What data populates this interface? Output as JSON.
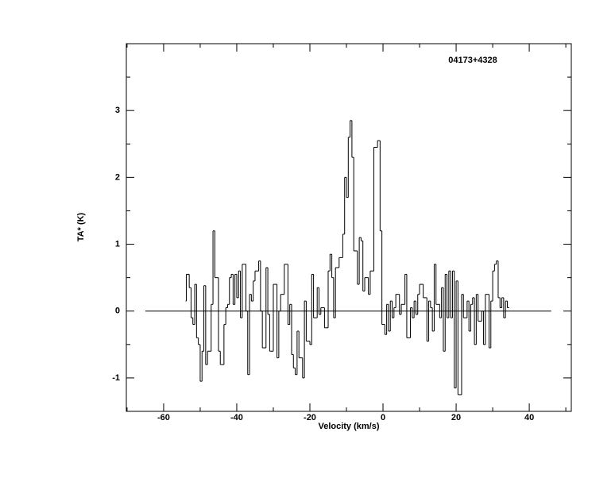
{
  "chart_data": {
    "type": "step",
    "title": "04173+4328",
    "xlabel": "Velocity (km/s)",
    "ylabel": "TA* (K)",
    "xlim": [
      -70.2,
      51.5
    ],
    "ylim": [
      -1.5,
      4.0
    ],
    "xticks": [
      -60,
      -40,
      -20,
      0,
      20,
      40
    ],
    "xticks_minor": [
      -70,
      -50,
      -30,
      -10,
      10,
      30,
      50
    ],
    "yticks": [
      -1,
      0,
      1,
      2,
      3
    ],
    "yticks_minor": [
      -1.5,
      -0.5,
      0.5,
      1.5,
      2.5,
      3.5
    ],
    "color": "#000000",
    "reference_line": {
      "y": 0,
      "x": [
        -65,
        46
      ]
    },
    "x": [
      -54,
      -53.8,
      -53,
      -52.5,
      -52,
      -51.5,
      -51,
      -50.5,
      -50,
      -49.5,
      -49,
      -48.5,
      -48,
      -47,
      -46.5,
      -46,
      -45,
      -44.5,
      -43.5,
      -43,
      -42.5,
      -42,
      -41.5,
      -41,
      -40.5,
      -40,
      -39.5,
      -39,
      -38.5,
      -37.5,
      -37,
      -36.5,
      -36,
      -35.5,
      -35,
      -34,
      -33.5,
      -33,
      -32,
      -31.5,
      -31,
      -30,
      -29,
      -28.5,
      -28,
      -27,
      -26,
      -25.5,
      -25,
      -24.5,
      -24,
      -23.5,
      -23,
      -22,
      -21.5,
      -21,
      -20,
      -19.5,
      -19,
      -18,
      -17.5,
      -17,
      -16,
      -15,
      -14.5,
      -14,
      -13.5,
      -13,
      -12,
      -11,
      -10.5,
      -10,
      -9.5,
      -9,
      -8.5,
      -8,
      -7,
      -6.5,
      -6,
      -5.5,
      -5,
      -4,
      -3.5,
      -2.5,
      -1.5,
      -0.8,
      -0.3,
      0.5,
      1,
      1.5,
      2,
      2.5,
      3,
      3.5,
      4.5,
      5,
      6,
      6.5,
      7.5,
      8,
      8.5,
      9,
      9.5,
      10,
      11,
      12,
      12.5,
      13,
      13.5,
      14,
      14.5,
      15.5,
      16,
      16.5,
      17,
      17.5,
      18,
      18.5,
      19,
      19.5,
      20,
      20.5,
      21.5,
      22,
      23,
      23.5,
      24,
      24.5,
      25,
      25.5,
      26,
      27,
      27.5,
      28,
      29,
      29.5,
      30,
      30.5,
      31,
      31.5,
      32,
      32.5,
      33,
      33.5,
      34
    ],
    "values": [
      0.15,
      0.55,
      0.35,
      -0.1,
      -0.2,
      0.4,
      -0.4,
      -0.5,
      -1.05,
      -0.6,
      0.38,
      -0.8,
      -0.6,
      0.1,
      1.2,
      0.5,
      -0.6,
      -0.8,
      -0.2,
      0.05,
      0.1,
      0.5,
      0.55,
      0.1,
      0.55,
      0.2,
      0.6,
      -0.1,
      0.7,
      0.0,
      -0.95,
      0.25,
      0.15,
      0.45,
      0.6,
      0.75,
      0.0,
      -0.55,
      0.65,
      -0.05,
      -0.6,
      0.4,
      -0.7,
      0.0,
      0.25,
      0.7,
      -0.2,
      0.1,
      -0.65,
      -0.85,
      -0.95,
      -0.3,
      -0.7,
      -1.0,
      0.15,
      -0.45,
      -0.5,
      0.55,
      -0.1,
      0.35,
      -0.05,
      0.05,
      -0.25,
      0.6,
      0.85,
      0.5,
      -0.1,
      0.65,
      0.8,
      1.15,
      2.0,
      1.7,
      2.6,
      2.85,
      2.3,
      0.9,
      0.4,
      1.1,
      1.05,
      0.3,
      0.5,
      0.25,
      0.6,
      2.45,
      2.55,
      1.2,
      -0.2,
      -0.35,
      0.1,
      -0.3,
      0.15,
      -0.1,
      0.05,
      0.25,
      -0.05,
      0.1,
      0.55,
      -0.4,
      0.05,
      -0.1,
      0.15,
      -0.05,
      0.25,
      0.4,
      0.2,
      -0.45,
      0.15,
      0.05,
      -0.3,
      0.7,
      0.1,
      -0.1,
      0.35,
      -0.6,
      0.55,
      -0.1,
      0.6,
      -0.1,
      0.6,
      -1.15,
      0.45,
      -1.25,
      0.25,
      -0.1,
      0.15,
      -0.3,
      0.1,
      0.2,
      -0.5,
      0.25,
      -0.15,
      0.0,
      -0.5,
      0.25,
      -0.55,
      0.15,
      0.6,
      0.7,
      0.75,
      0.2,
      0.05,
      0.2,
      -0.1,
      0.15,
      0.05
    ]
  }
}
